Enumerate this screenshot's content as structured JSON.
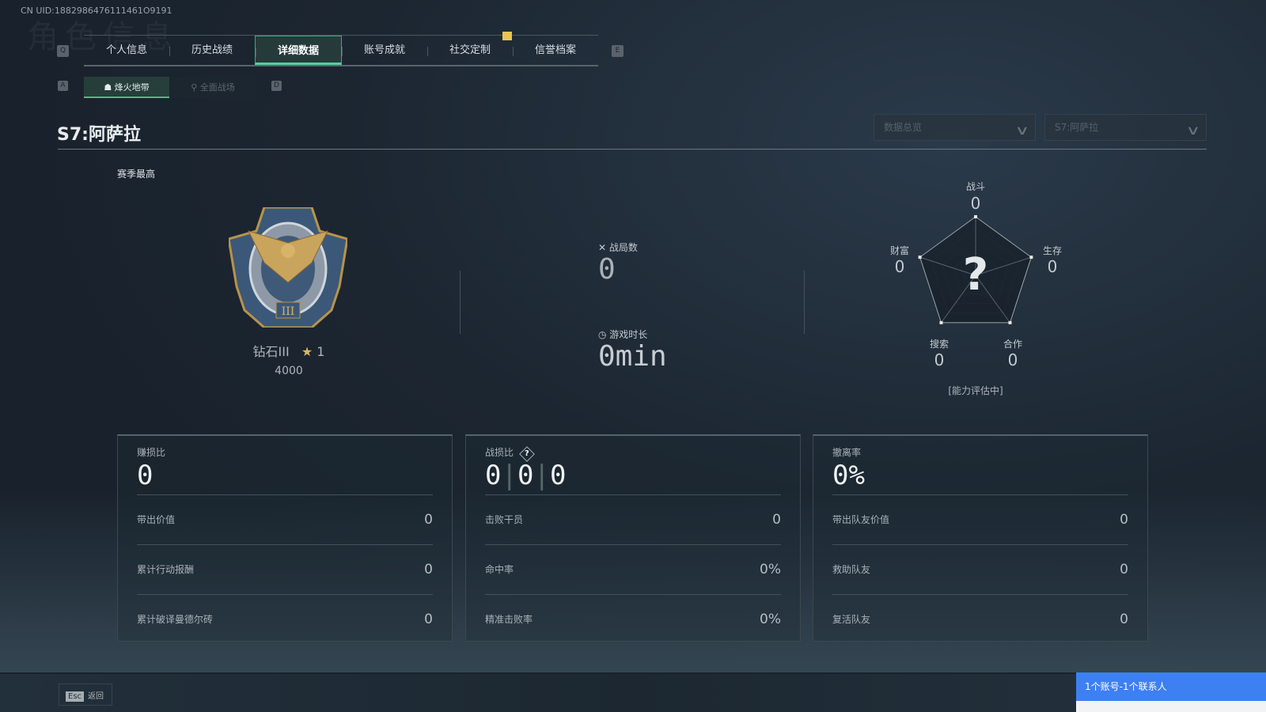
{
  "uid": "CN UID:1882986476111461O9191",
  "ghost_title": "角色信息",
  "tabs": {
    "left_key": "Q",
    "right_key": "E",
    "items": [
      {
        "label": "个人信息"
      },
      {
        "label": "历史战绩"
      },
      {
        "label": "详细数据"
      },
      {
        "label": "账号成就"
      },
      {
        "label": "社交定制"
      },
      {
        "label": "信誉档案"
      }
    ],
    "active": 2
  },
  "subtabs": {
    "left_key": "A",
    "right_key": "D",
    "items": [
      {
        "label": "烽火地带"
      },
      {
        "label": "全面战场"
      }
    ]
  },
  "season_title": "S7:阿萨拉",
  "dropdowns": [
    {
      "value": "数据总览"
    },
    {
      "value": "S7:阿萨拉"
    }
  ],
  "rank": {
    "heading": "赛季最高",
    "name": "钻石III",
    "stars": "1",
    "score": "4000"
  },
  "battles": {
    "label": "战局数",
    "value": "0"
  },
  "playtime": {
    "label": "游戏时长",
    "value": "0min"
  },
  "radar": {
    "axes": [
      {
        "label": "战斗",
        "value": "0"
      },
      {
        "label": "生存",
        "value": "0"
      },
      {
        "label": "合作",
        "value": "0"
      },
      {
        "label": "搜索",
        "value": "0"
      },
      {
        "label": "财富",
        "value": "0"
      }
    ],
    "center_mark": "?",
    "status": "[能力评估中]"
  },
  "cards": [
    {
      "title": "赚损比",
      "value": "0",
      "rows": [
        {
          "label": "带出价值",
          "value": "0"
        },
        {
          "label": "累计行动报酬",
          "value": "0"
        },
        {
          "label": "累计破译曼德尔砖",
          "value": "0"
        }
      ]
    },
    {
      "title": "战损比",
      "help": "?",
      "values": [
        "0",
        "0",
        "0"
      ],
      "rows": [
        {
          "label": "击败干员",
          "value": "0"
        },
        {
          "label": "命中率",
          "value": "0%"
        },
        {
          "label": "精准击败率",
          "value": "0%"
        }
      ]
    },
    {
      "title": "撤离率",
      "value": "0%",
      "rows": [
        {
          "label": "带出队友价值",
          "value": "0"
        },
        {
          "label": "救助队友",
          "value": "0"
        },
        {
          "label": "复活队友",
          "value": "0"
        }
      ]
    }
  ],
  "footer": {
    "esc_key": "Esc",
    "back_label": "返回"
  },
  "notice": "1个账号-1个联系人",
  "colors": {
    "accent": "#4fd39a",
    "badge": "#e9c452",
    "notice": "#3d80f2"
  }
}
